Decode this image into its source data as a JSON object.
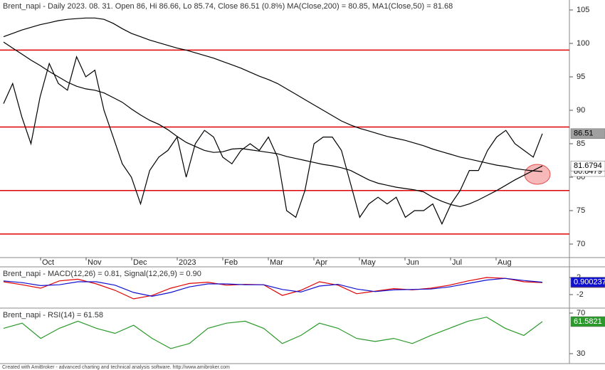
{
  "chart_data": [
    {
      "type": "line",
      "title": "Brent_napi - Daily 2023. 08. 31. Open 86, Hi 86.66, Lo 85.74, Close 86.51 (0.8%) MA(Close,200) = 80.85, MA1(Close,50) = 81.68",
      "xlabels": [
        "Oct",
        "Nov",
        "Dec",
        "2023",
        "Feb",
        "Mar",
        "Apr",
        "May",
        "Jun",
        "Jul",
        "Aug"
      ],
      "ylim": [
        67.98,
        106.49
      ],
      "yticks": [
        70,
        75,
        80,
        85,
        90,
        95,
        100,
        105
      ],
      "levels": [
        99,
        87.5,
        78,
        71.5
      ],
      "level_color": "#e00000",
      "series": [
        {
          "color": "#000000",
          "label_fill": "#a0a0a0",
          "label_text": "#000000",
          "values": [
            91,
            94,
            89,
            85,
            92,
            97,
            94,
            93,
            98,
            95,
            96,
            90,
            86,
            82,
            80,
            76,
            81,
            83,
            84,
            86,
            80,
            85,
            87,
            86,
            83,
            82,
            84,
            85,
            84,
            86,
            83,
            75,
            74,
            78,
            85,
            86,
            86,
            84,
            79,
            74,
            76,
            77,
            76,
            77,
            74,
            75,
            75,
            76,
            73,
            76,
            78,
            81,
            81,
            84,
            86,
            87,
            85,
            84,
            83,
            86.51
          ]
        },
        {
          "color": "#000000",
          "label_fill": "#ffffff",
          "label_text": "#000000",
          "last_label": "80.8479",
          "values": [
            101.0,
            101.5,
            102.0,
            102.4,
            102.8,
            103.1,
            103.4,
            103.6,
            103.7,
            103.8,
            103.8,
            103.6,
            103.0,
            102.2,
            101.5,
            101.0,
            100.5,
            100.1,
            99.7,
            99.3,
            99.0,
            98.6,
            98.2,
            97.8,
            97.3,
            96.8,
            96.3,
            95.7,
            95.1,
            94.6,
            94.0,
            93.2,
            92.4,
            91.6,
            90.8,
            90.0,
            89.2,
            88.4,
            87.8,
            87.3,
            86.9,
            86.5,
            86.1,
            85.8,
            85.5,
            85.1,
            84.7,
            84.2,
            83.8,
            83.4,
            83.0,
            82.7,
            82.4,
            82.1,
            81.8,
            81.6,
            81.3,
            81.1,
            80.95,
            80.85
          ]
        },
        {
          "color": "#000000",
          "label_fill": "#ffffff",
          "label_text": "#000000",
          "last_label": "81.6794",
          "values": [
            100.2,
            99.3,
            98.4,
            97.5,
            96.7,
            95.8,
            95.0,
            94.2,
            93.6,
            93.2,
            93.0,
            92.6,
            91.9,
            91.2,
            90.2,
            89.3,
            88.5,
            87.9,
            87.1,
            86.1,
            85.2,
            84.6,
            84.0,
            83.7,
            83.8,
            84.2,
            84.3,
            84.1,
            83.9,
            83.7,
            83.5,
            83.1,
            82.8,
            82.5,
            82.2,
            81.9,
            81.7,
            81.4,
            81.0,
            80.3,
            79.6,
            79.1,
            78.8,
            78.5,
            78.3,
            78.1,
            77.8,
            77.0,
            76.4,
            75.9,
            75.6,
            76.0,
            76.6,
            77.3,
            78.0,
            78.8,
            79.6,
            80.3,
            81.0,
            81.68
          ]
        }
      ]
    },
    {
      "type": "line",
      "title": "Brent_napi - MACD(12,26) = 0.81, Signal(12,26,9) = 0.90",
      "ylim": [
        -5,
        4.33
      ],
      "yticks": [
        2,
        -2
      ],
      "series": [
        {
          "color": "#e00000",
          "label_fill": "#e00000",
          "label_text": "#ffffff",
          "last_label": "0.81416",
          "values": [
            1.0,
            0.3,
            -0.5,
            1.2,
            1.6,
            0.5,
            -1.0,
            -3.0,
            -2.2,
            -0.5,
            0.6,
            0.9,
            0.2,
            0.4,
            0.3,
            -2.2,
            -1.0,
            1.0,
            0.2,
            -1.8,
            -1.2,
            -0.6,
            -0.9,
            -0.5,
            0.2,
            1.2,
            2.0,
            1.8,
            1.0,
            0.81
          ]
        },
        {
          "color": "#1010d0",
          "label_fill": "#1010d0",
          "label_text": "#ffffff",
          "last_label": "0.900237",
          "values": [
            1.2,
            0.8,
            0.1,
            0.3,
            1.0,
            1.0,
            0.2,
            -1.5,
            -2.4,
            -1.5,
            -0.2,
            0.5,
            0.5,
            0.3,
            0.3,
            -0.8,
            -1.4,
            0.0,
            0.4,
            -0.7,
            -1.3,
            -0.9,
            -0.8,
            -0.7,
            -0.2,
            0.6,
            1.4,
            1.8,
            1.3,
            0.9
          ]
        }
      ]
    },
    {
      "type": "line",
      "title": "Brent_napi - RSI(14) = 61.58",
      "ylim": [
        20.9,
        74.2
      ],
      "yticks": [
        70,
        30
      ],
      "series": [
        {
          "color": "#2a9a2a",
          "label_fill": "#2a9a2a",
          "label_text": "#ffffff",
          "last_label": "61.5821",
          "values": [
            55,
            60,
            45,
            55,
            62,
            55,
            50,
            58,
            45,
            35,
            40,
            55,
            60,
            62,
            55,
            40,
            48,
            60,
            55,
            45,
            42,
            45,
            40,
            48,
            55,
            62,
            66,
            55,
            48,
            61.58
          ]
        }
      ]
    }
  ],
  "footer": "Created with AmiBroker - advanced charting and technical analysis software. http://www.amibroker.com"
}
